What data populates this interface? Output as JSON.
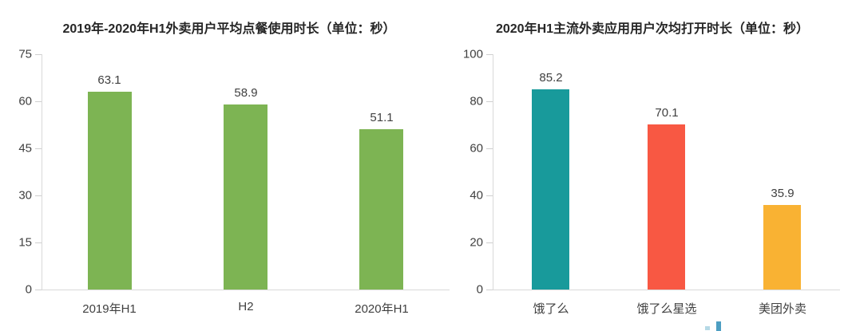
{
  "page": {
    "background": "#ffffff"
  },
  "chart_data": [
    {
      "type": "bar",
      "title": "2019年-2020年H1外卖用户平均点餐使用时长（单位：秒）",
      "categories": [
        "2019年H1",
        "H2",
        "2020年H1"
      ],
      "values": [
        63.1,
        58.9,
        51.1
      ],
      "value_labels": [
        "63.1",
        "58.9",
        "51.1"
      ],
      "colors": [
        "#7db453",
        "#7db453",
        "#7db453"
      ],
      "ylim": [
        0,
        75
      ],
      "yticks": [
        0,
        15,
        30,
        45,
        60,
        75
      ],
      "xlabel": "",
      "ylabel": "",
      "grid": false,
      "legend": "none",
      "axis_color": "#d9d9d9",
      "label_color": "#404040",
      "title_color": "#262626"
    },
    {
      "type": "bar",
      "title": "2020年H1主流外卖应用用户次均打开时长（单位：秒）",
      "categories": [
        "饿了么",
        "饿了么星选",
        "美团外卖"
      ],
      "values": [
        85.2,
        70.1,
        35.9
      ],
      "value_labels": [
        "85.2",
        "70.1",
        "35.9"
      ],
      "colors": [
        "#189a9b",
        "#f85843",
        "#f9b233"
      ],
      "ylim": [
        0,
        100
      ],
      "yticks": [
        0,
        20,
        40,
        60,
        80,
        100
      ],
      "xlabel": "",
      "ylabel": "",
      "grid": false,
      "legend": "none",
      "axis_color": "#d9d9d9",
      "label_color": "#404040",
      "title_color": "#262626"
    }
  ],
  "watermark": {
    "fragment_colors": [
      "#b5d9e6",
      "#4d9ec2"
    ]
  }
}
